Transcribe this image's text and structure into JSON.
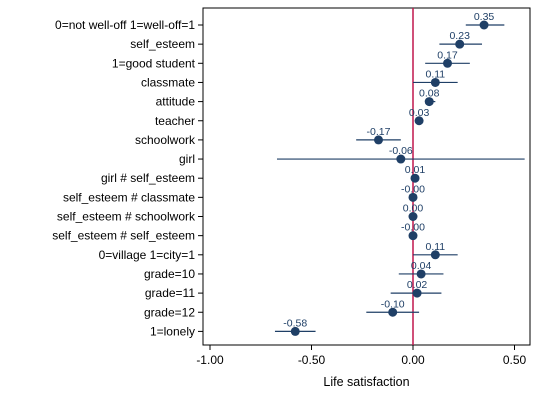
{
  "chart_data": {
    "type": "scatter",
    "subtype": "coefficient-plot",
    "xlabel": "Life satisfaction",
    "xlim": [
      -1.0,
      0.55
    ],
    "xticks": [
      -1.0,
      -0.5,
      0.0,
      0.5
    ],
    "xtick_labels": [
      "-1.00",
      "-0.50",
      "0.00",
      "0.50"
    ],
    "reference_line": 0,
    "grid": false,
    "colors": {
      "marker": "#1f3f66",
      "ci_line": "#1f3f66",
      "value_label": "#1f3f66",
      "reference_line": "#c0174d",
      "frame": "#000000"
    },
    "categories": [
      "0=not well-off 1=well-off=1",
      "self_esteem",
      "1=good student",
      "classmate",
      "attitude",
      "teacher",
      "schoolwork",
      "girl",
      "girl # self_esteem",
      "self_esteem # classmate",
      "self_esteem # schoolwork",
      "self_esteem # self_esteem",
      "0=village 1=city=1",
      "grade=10",
      "grade=11",
      "grade=12",
      "1=lonely"
    ],
    "estimates": [
      0.35,
      0.23,
      0.17,
      0.11,
      0.08,
      0.03,
      -0.17,
      -0.06,
      0.01,
      -0.0,
      0.0,
      -0.0,
      0.11,
      0.04,
      0.02,
      -0.1,
      -0.58
    ],
    "labels": [
      "0.35",
      "0.23",
      "0.17",
      "0.11",
      "0.08",
      "0.03",
      "-0.17",
      "-0.06",
      "0.01",
      "-0.00",
      "0.00",
      "-0.00",
      "0.11",
      "0.04",
      "0.02",
      "-0.10",
      "-0.58"
    ],
    "ci_low": [
      0.26,
      0.13,
      0.06,
      0.0,
      0.06,
      0.02,
      -0.28,
      -0.67,
      0.0,
      -0.01,
      -0.01,
      -0.01,
      0.0,
      -0.07,
      -0.11,
      -0.23,
      -0.68
    ],
    "ci_high": [
      0.45,
      0.34,
      0.28,
      0.22,
      0.11,
      0.04,
      -0.06,
      0.55,
      0.02,
      0.01,
      0.01,
      0.01,
      0.22,
      0.15,
      0.14,
      0.03,
      -0.48
    ]
  }
}
